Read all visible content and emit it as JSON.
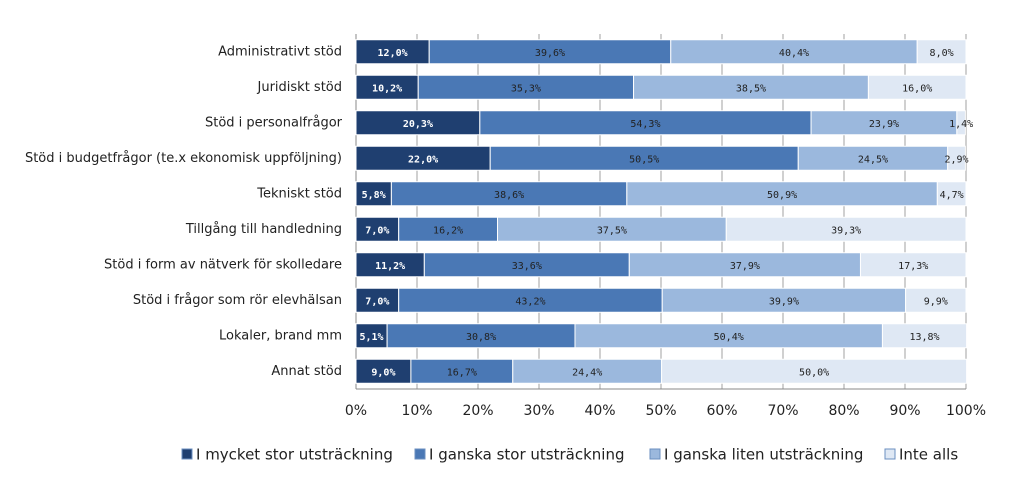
{
  "chart_data": {
    "type": "stacked-bar-horizontal",
    "categories": [
      "Administrativt stöd",
      "Juridiskt stöd",
      "Stöd i personalfrågor",
      "Stöd i budgetfrågor (te.x ekonomisk uppföljning)",
      "Tekniskt stöd",
      "Tillgång till handledning",
      "Stöd i form av nätverk för skolledare",
      "Stöd i frågor som rör elevhälsan",
      "Lokaler, brand mm",
      "Annat stöd"
    ],
    "series": [
      {
        "name": "I mycket stor utsträckning",
        "color": "#1f3f70",
        "values": [
          12.0,
          10.2,
          20.3,
          22.0,
          5.8,
          7.0,
          11.2,
          7.0,
          5.1,
          9.0
        ],
        "value_labels": [
          "12,0%",
          "10,2%",
          "20,3%",
          "22,0%",
          "5,8%",
          "7,0%",
          "11,2%",
          "7,0%",
          "5,1%",
          "9,0%"
        ]
      },
      {
        "name": "I ganska stor utsträckning",
        "color": "#4a78b5",
        "values": [
          39.6,
          35.3,
          54.3,
          50.5,
          38.6,
          16.2,
          33.6,
          43.2,
          30.8,
          16.7
        ],
        "value_labels": [
          "39,6%",
          "35,3%",
          "54,3%",
          "50,5%",
          "38,6%",
          "16,2%",
          "33,6%",
          "43,2%",
          "30,8%",
          "16,7%"
        ]
      },
      {
        "name": "I ganska liten utsträckning",
        "color": "#9bb8dd",
        "values": [
          40.4,
          38.5,
          23.9,
          24.5,
          50.9,
          37.5,
          37.9,
          39.9,
          50.4,
          24.4
        ],
        "value_labels": [
          "40,4%",
          "38,5%",
          "23,9%",
          "24,5%",
          "50,9%",
          "37,5%",
          "37,9%",
          "39,9%",
          "50,4%",
          "24,4%"
        ]
      },
      {
        "name": "Inte alls",
        "color": "#dfe8f4",
        "values": [
          8.0,
          16.0,
          1.4,
          2.9,
          4.7,
          39.3,
          17.3,
          9.9,
          13.8,
          50.0
        ],
        "value_labels": [
          "8,0%",
          "16,0%",
          "1,4%",
          "2,9%",
          "4,7%",
          "39,3%",
          "17,3%",
          "9,9%",
          "13,8%",
          "50,0%"
        ]
      }
    ],
    "xlim": [
      0,
      100
    ],
    "xticks": [
      {
        "value": 0,
        "label": "0%"
      },
      {
        "value": 10,
        "label": "10%"
      },
      {
        "value": 20,
        "label": "20%"
      },
      {
        "value": 30,
        "label": "30%"
      },
      {
        "value": 40,
        "label": "40%"
      },
      {
        "value": 50,
        "label": "50%"
      },
      {
        "value": 60,
        "label": "60%"
      },
      {
        "value": 70,
        "label": "70%"
      },
      {
        "value": 80,
        "label": "80%"
      },
      {
        "value": 90,
        "label": "90%"
      },
      {
        "value": 100,
        "label": "100%"
      }
    ],
    "grid": true,
    "legend": "bottom"
  }
}
